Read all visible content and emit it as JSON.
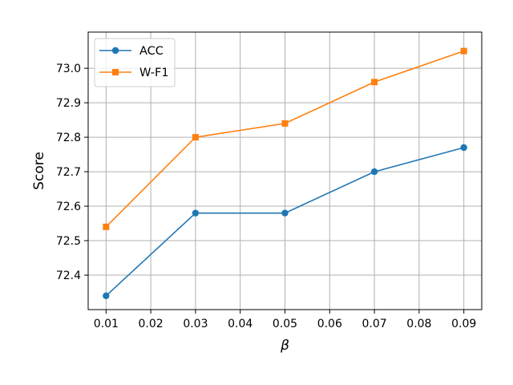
{
  "chart_data": {
    "type": "line",
    "title": "",
    "xlabel": "β",
    "ylabel": "Score",
    "x": [
      0.01,
      0.03,
      0.05,
      0.07,
      0.09
    ],
    "xlim": [
      0.006,
      0.094
    ],
    "ylim": [
      72.3,
      73.105
    ],
    "xticks": [
      0.01,
      0.02,
      0.03,
      0.04,
      0.05,
      0.06,
      0.07,
      0.08,
      0.09
    ],
    "xtick_labels": [
      "0.01",
      "0.02",
      "0.03",
      "0.04",
      "0.05",
      "0.06",
      "0.07",
      "0.08",
      "0.09"
    ],
    "yticks": [
      72.4,
      72.5,
      72.6,
      72.7,
      72.8,
      72.9,
      73.0
    ],
    "ytick_labels": [
      "72.4",
      "72.5",
      "72.6",
      "72.7",
      "72.8",
      "72.9",
      "73.0"
    ],
    "grid": true,
    "legend_position": "upper-left",
    "series": [
      {
        "name": "ACC",
        "values": [
          72.34,
          72.58,
          72.58,
          72.7,
          72.77
        ],
        "color": "#1f77b4",
        "marker": "circle"
      },
      {
        "name": "W-F1",
        "values": [
          72.54,
          72.8,
          72.84,
          72.96,
          73.05
        ],
        "color": "#ff7f0e",
        "marker": "square"
      }
    ]
  }
}
